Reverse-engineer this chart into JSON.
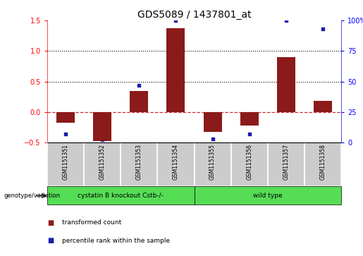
{
  "title": "GDS5089 / 1437801_at",
  "samples": [
    "GSM1151351",
    "GSM1151352",
    "GSM1151353",
    "GSM1151354",
    "GSM1151355",
    "GSM1151356",
    "GSM1151357",
    "GSM1151358"
  ],
  "transformed_counts": [
    -0.17,
    -0.48,
    0.34,
    1.37,
    -0.32,
    -0.22,
    0.9,
    0.18
  ],
  "percentile_ranks": [
    7,
    0,
    47,
    100,
    3,
    7,
    100,
    93
  ],
  "ylim_left": [
    -0.5,
    1.5
  ],
  "ylim_right": [
    0,
    100
  ],
  "yticks_left": [
    -0.5,
    0,
    0.5,
    1.0,
    1.5
  ],
  "yticks_right": [
    0,
    25,
    50,
    75,
    100
  ],
  "bar_color": "#8B1A1A",
  "dot_color": "#1C1CB0",
  "zero_line_color": "#CC3333",
  "dotted_line_color": "black",
  "group1_label": "cystatin B knockout Cstb-/-",
  "group2_label": "wild type",
  "group1_count": 4,
  "group2_count": 4,
  "group_color": "#55DD55",
  "group_label_prefix": "genotype/variation",
  "legend_bar_label": "transformed count",
  "legend_dot_label": "percentile rank within the sample",
  "title_fontsize": 10,
  "tick_fontsize": 7,
  "bar_width": 0.5,
  "sample_box_color": "#CCCCCC",
  "bg_color": "#FFFFFF"
}
